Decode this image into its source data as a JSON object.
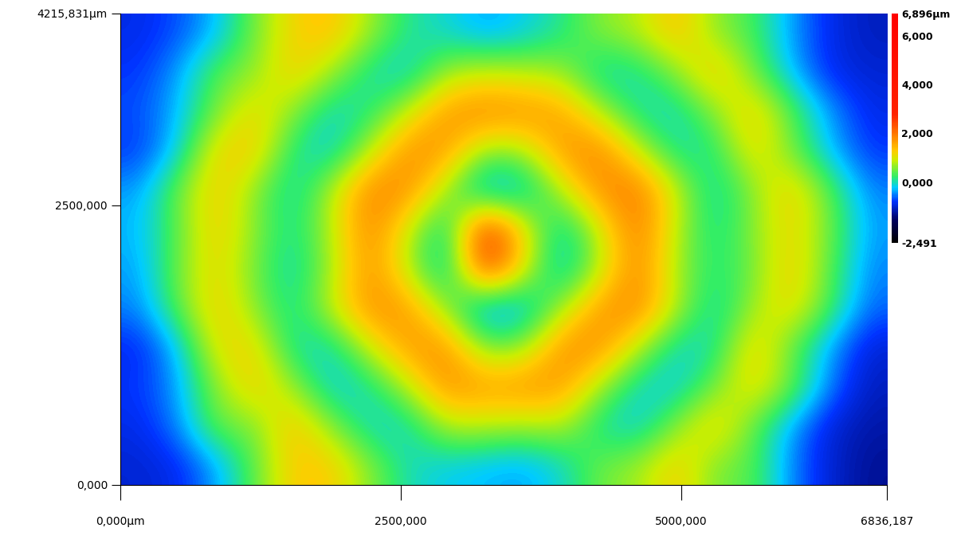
{
  "chart_data": {
    "type": "heatmap",
    "xlim": [
      0,
      6836.187
    ],
    "ylim": [
      0,
      4215.831
    ],
    "xticks": [
      {
        "value": 0,
        "label": "0,000µm"
      },
      {
        "value": 2500,
        "label": "2500,000"
      },
      {
        "value": 5000,
        "label": "5000,000"
      },
      {
        "value": 6836.187,
        "label": "6836,187"
      }
    ],
    "yticks": [
      {
        "value": 0,
        "label": "0,000"
      },
      {
        "value": 2500,
        "label": "2500,000"
      },
      {
        "value": 4215.831,
        "label": "4215,831µm"
      }
    ],
    "colorbar_range": [
      -2.491,
      6.896
    ],
    "colorbar_ticks": [
      {
        "value": 6.896,
        "label": "6,896µm"
      },
      {
        "value": 6,
        "label": "6,000"
      },
      {
        "value": 4,
        "label": "4,000"
      },
      {
        "value": 2,
        "label": "2,000"
      },
      {
        "value": 0,
        "label": "0,000"
      },
      {
        "value": -2.491,
        "label": "-2,491"
      }
    ],
    "cells": [
      [
        -0.9,
        -0.7,
        -0.3,
        0.5,
        1.2,
        1.4,
        0.7,
        0.1,
        -0.1,
        -0.4,
        -0.2,
        0.1,
        0.6,
        0.8,
        1.4,
        0.6,
        0.3,
        -0.4,
        -0.9,
        -1.1
      ],
      [
        -0.8,
        -0.4,
        0.4,
        0.6,
        1.3,
        0.7,
        0.0,
        -0.2,
        0.7,
        0.9,
        0.8,
        0.7,
        -0.1,
        0.0,
        0.6,
        1.4,
        0.5,
        -0.3,
        -0.9,
        -1.0
      ],
      [
        -0.7,
        -0.3,
        0.5,
        1.2,
        0.6,
        -0.1,
        0.1,
        0.9,
        1.7,
        1.9,
        1.8,
        1.6,
        0.8,
        0.0,
        -0.1,
        0.6,
        1.3,
        0.4,
        -0.4,
        -0.9
      ],
      [
        -0.8,
        -0.2,
        1.2,
        1.3,
        0.1,
        -0.2,
        0.8,
        1.8,
        1.7,
        0.6,
        0.7,
        1.7,
        1.9,
        0.9,
        0.0,
        0.1,
        1.2,
        0.5,
        -0.3,
        -0.8
      ],
      [
        -0.4,
        0.5,
        1.3,
        0.6,
        -0.1,
        0.8,
        1.9,
        1.8,
        0.7,
        -0.5,
        -0.3,
        0.8,
        1.8,
        2.0,
        0.9,
        -0.1,
        0.6,
        1.3,
        0.4,
        -0.5
      ],
      [
        -0.3,
        0.4,
        1.3,
        0.6,
        0.0,
        0.8,
        1.9,
        0.9,
        -0.2,
        2.8,
        1.2,
        -0.2,
        0.9,
        2.0,
        0.8,
        0.0,
        0.6,
        1.2,
        0.5,
        -0.4
      ],
      [
        -0.4,
        0.5,
        1.2,
        0.5,
        -0.1,
        0.7,
        1.8,
        0.8,
        -0.3,
        2.6,
        1.1,
        -0.3,
        0.8,
        1.9,
        0.7,
        0.1,
        0.5,
        1.3,
        0.4,
        -0.5
      ],
      [
        -0.5,
        0.4,
        1.3,
        0.6,
        0.0,
        0.9,
        1.8,
        1.7,
        0.6,
        -0.6,
        -0.4,
        0.7,
        1.7,
        1.9,
        0.8,
        -0.1,
        0.7,
        1.2,
        0.3,
        -0.6
      ],
      [
        -0.9,
        -0.3,
        1.1,
        1.2,
        0.0,
        -0.1,
        0.9,
        1.7,
        1.8,
        0.5,
        0.6,
        1.8,
        1.8,
        0.8,
        -0.1,
        0.0,
        1.3,
        0.4,
        -0.4,
        -1.0
      ],
      [
        -0.8,
        -0.4,
        0.6,
        1.3,
        0.7,
        -0.2,
        0.0,
        0.8,
        1.8,
        1.7,
        1.8,
        1.7,
        0.7,
        -0.1,
        -0.2,
        0.5,
        1.2,
        0.5,
        -0.5,
        -1.1
      ],
      [
        -0.9,
        -0.5,
        0.5,
        0.5,
        1.4,
        0.6,
        -0.1,
        -0.1,
        0.8,
        0.8,
        0.7,
        0.8,
        0.0,
        -0.2,
        0.6,
        1.3,
        0.4,
        -0.4,
        -1.0,
        -1.2
      ],
      [
        -1.0,
        -0.9,
        -0.4,
        0.4,
        1.3,
        1.3,
        0.6,
        0.0,
        -0.2,
        -0.3,
        -0.4,
        -0.1,
        0.5,
        0.7,
        1.3,
        0.5,
        0.4,
        -0.5,
        -1.0,
        -1.3
      ]
    ]
  }
}
